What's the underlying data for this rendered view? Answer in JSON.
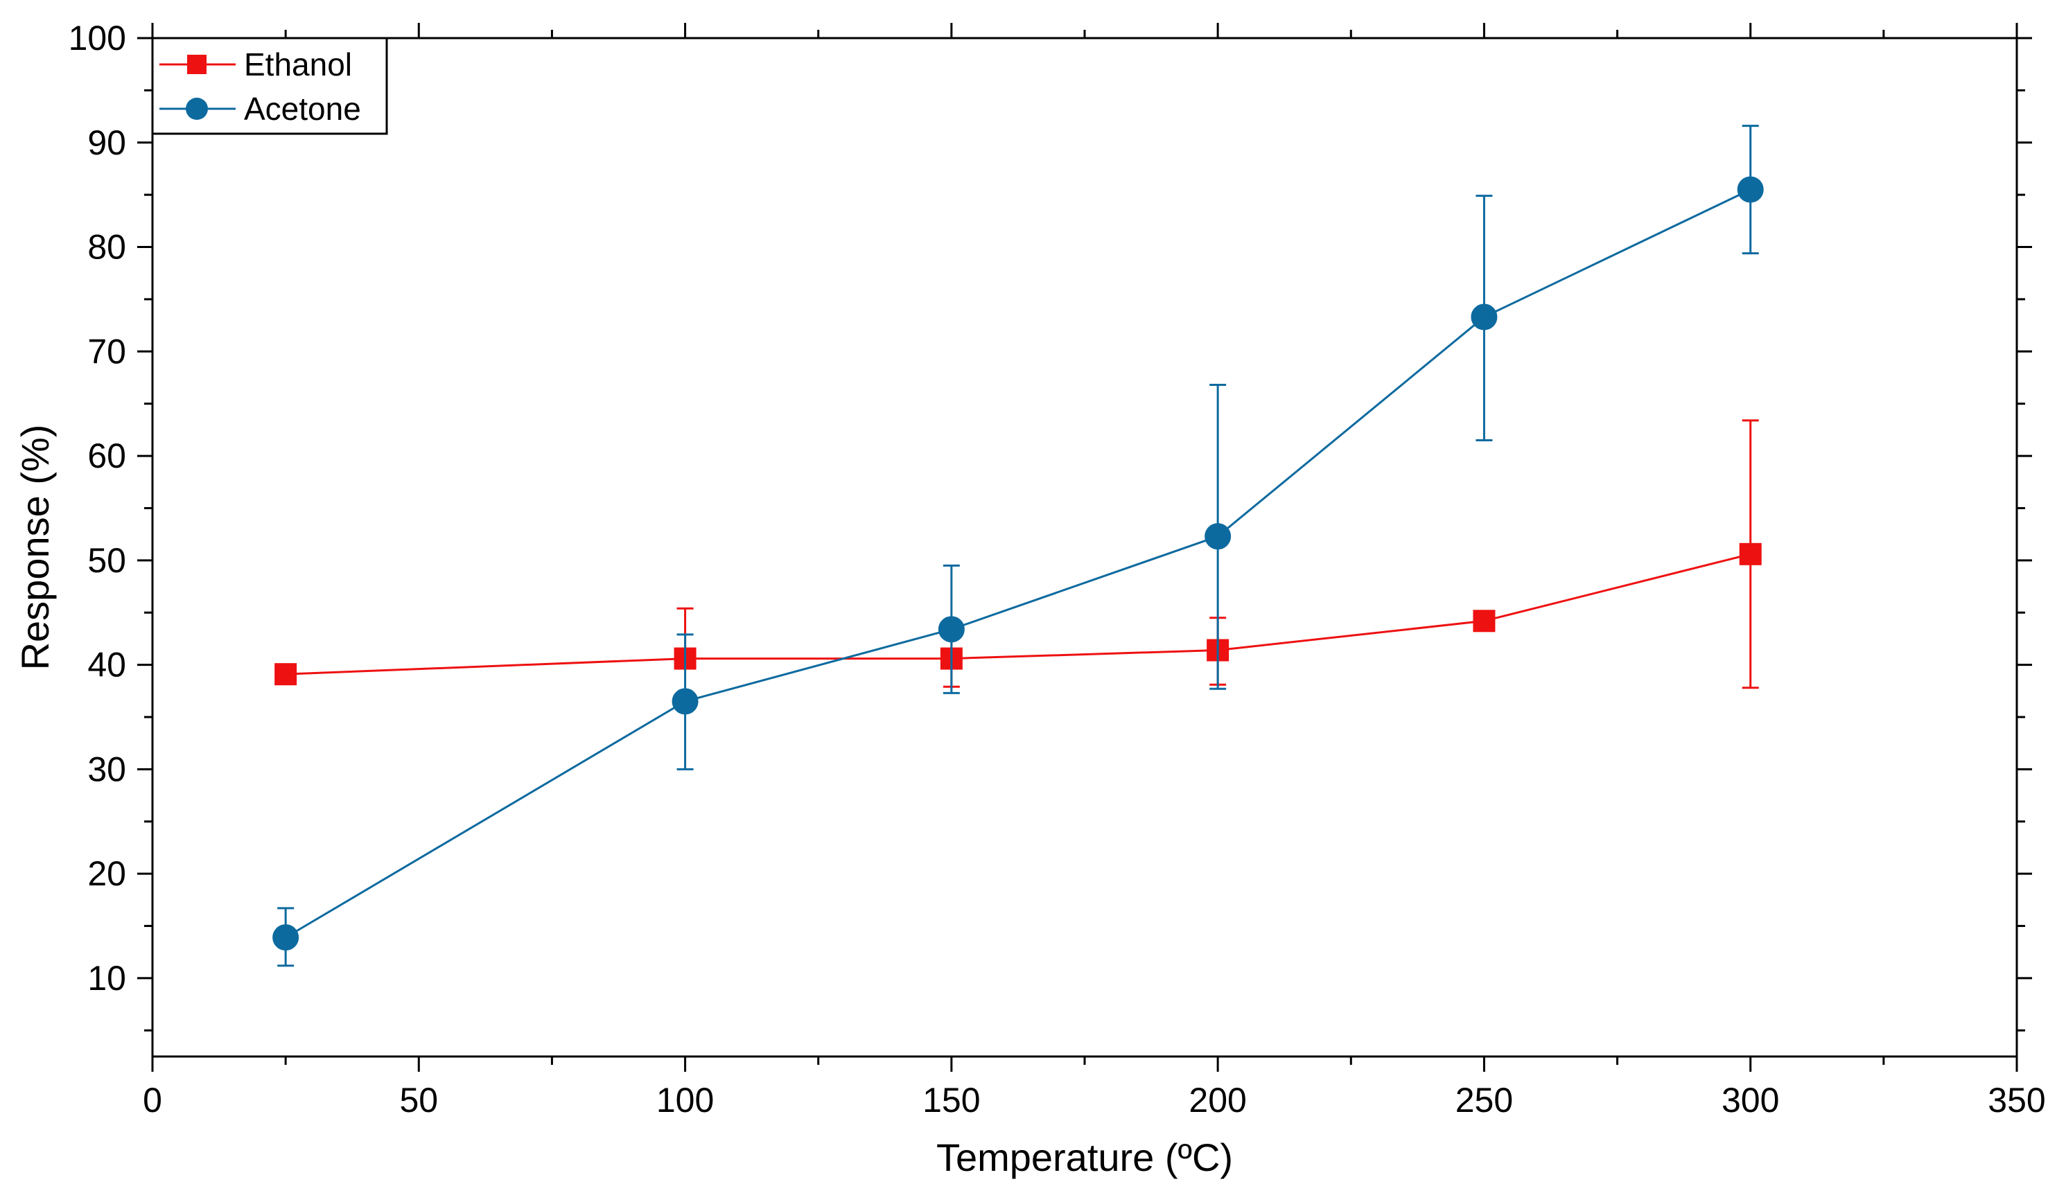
{
  "chart_data": {
    "type": "line",
    "title": "",
    "xlabel": "Temperature (ºC)",
    "ylabel": "Response (%)",
    "xlim": [
      0,
      350
    ],
    "ylim": [
      2.5,
      100
    ],
    "xticks": [
      0,
      50,
      100,
      150,
      200,
      250,
      300,
      350
    ],
    "yticks": [
      10,
      20,
      30,
      40,
      50,
      60,
      70,
      80,
      90,
      100
    ],
    "grid": false,
    "legend_position": "top-left",
    "series": [
      {
        "name": "Ethanol",
        "color": "#ee1111",
        "marker": "square",
        "x": [
          25,
          100,
          150,
          200,
          250,
          300
        ],
        "y": [
          39.1,
          40.6,
          40.6,
          41.4,
          44.2,
          50.6
        ],
        "err_low": [
          39.1,
          40.6,
          37.9,
          38.1,
          44.2,
          37.8
        ],
        "err_high": [
          39.1,
          45.4,
          43.2,
          44.5,
          44.2,
          63.4
        ]
      },
      {
        "name": "Acetone",
        "color": "#0d6a9f",
        "marker": "circle",
        "x": [
          25,
          100,
          150,
          200,
          250,
          300
        ],
        "y": [
          13.9,
          36.5,
          43.4,
          52.3,
          73.3,
          85.5
        ],
        "err_low": [
          11.2,
          30.0,
          37.3,
          37.7,
          61.5,
          79.4
        ],
        "err_high": [
          16.7,
          42.9,
          49.5,
          66.8,
          84.9,
          91.6
        ]
      }
    ]
  }
}
